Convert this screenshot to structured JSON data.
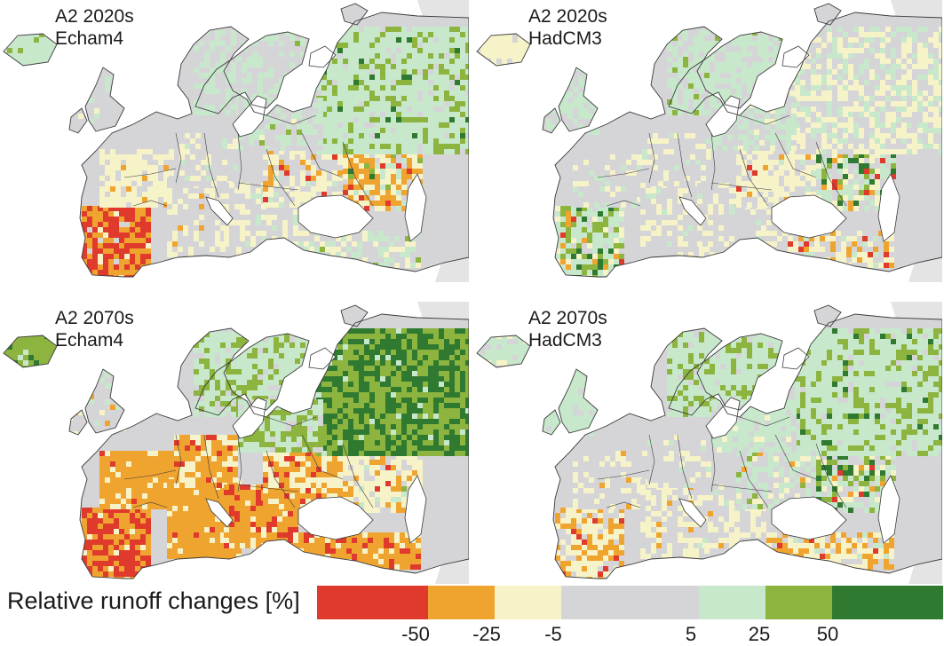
{
  "panels": [
    {
      "id": "p0",
      "line1": "A2 2020s",
      "line2": "Echam4"
    },
    {
      "id": "p1",
      "line1": "A2 2020s",
      "line2": "HadCM3"
    },
    {
      "id": "p2",
      "line1": "A2 2070s",
      "line2": "Echam4"
    },
    {
      "id": "p3",
      "line1": "A2 2070s",
      "line2": "HadCM3"
    }
  ],
  "legend": {
    "title": "Relative runoff changes [%]",
    "classes": [
      {
        "color": "#e03a2c"
      },
      {
        "color": "#f0a430"
      },
      {
        "color": "#f7f3c8"
      },
      {
        "color": "#d5d5d8"
      },
      {
        "color": "#c8e8cc"
      },
      {
        "color": "#8cb43e"
      },
      {
        "color": "#2f7a30"
      }
    ],
    "ticks": [
      "-50",
      "-25",
      "-5",
      "5",
      "25",
      "50"
    ]
  },
  "colors": {
    "sea": "#ffffff",
    "border": "#3a3a3a",
    "out_of_domain": "#e4e4e4"
  }
}
